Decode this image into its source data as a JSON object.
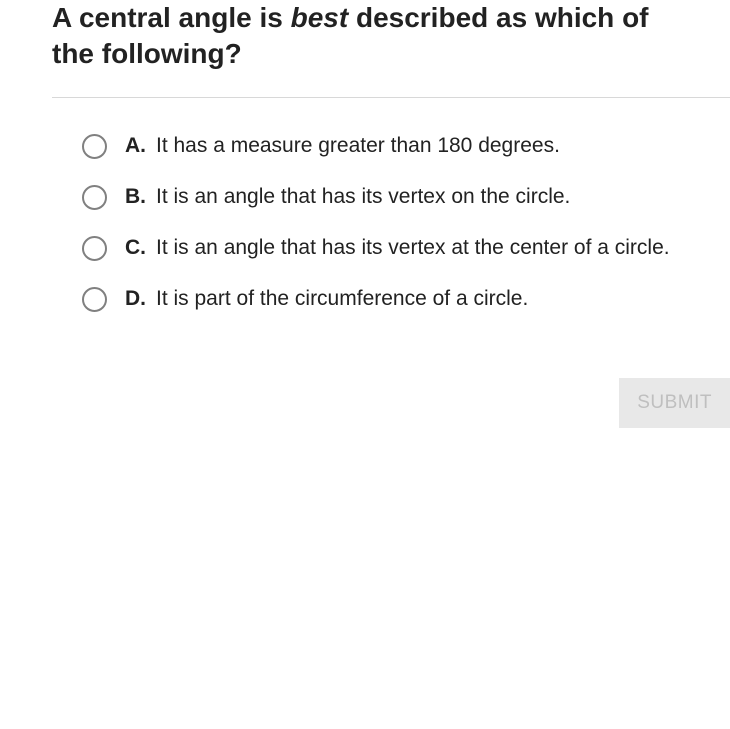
{
  "question": {
    "prefix": "A central angle is ",
    "italic_word": "best",
    "suffix": " described as which of the following?",
    "font_size": 28,
    "color": "#222222"
  },
  "divider": {
    "color": "#d8d8d8"
  },
  "options": [
    {
      "letter": "A.",
      "text": "It has a measure greater than 180 degrees."
    },
    {
      "letter": "B.",
      "text": "It is an angle that has its vertex on the circle."
    },
    {
      "letter": "C.",
      "text": "It is an angle that has its vertex at the center of a circle."
    },
    {
      "letter": "D.",
      "text": "It is part of the circumference of a circle."
    }
  ],
  "option_style": {
    "radio_border_color": "#808080",
    "radio_size": 25,
    "letter_color": "#222222",
    "letter_font_size": 21,
    "letter_font_weight": 700,
    "text_color": "#222222",
    "text_font_size": 21
  },
  "submit": {
    "label": "SUBMIT",
    "bg_color": "#e8e8e8",
    "text_color": "#bfbfbf",
    "font_size": 19
  }
}
